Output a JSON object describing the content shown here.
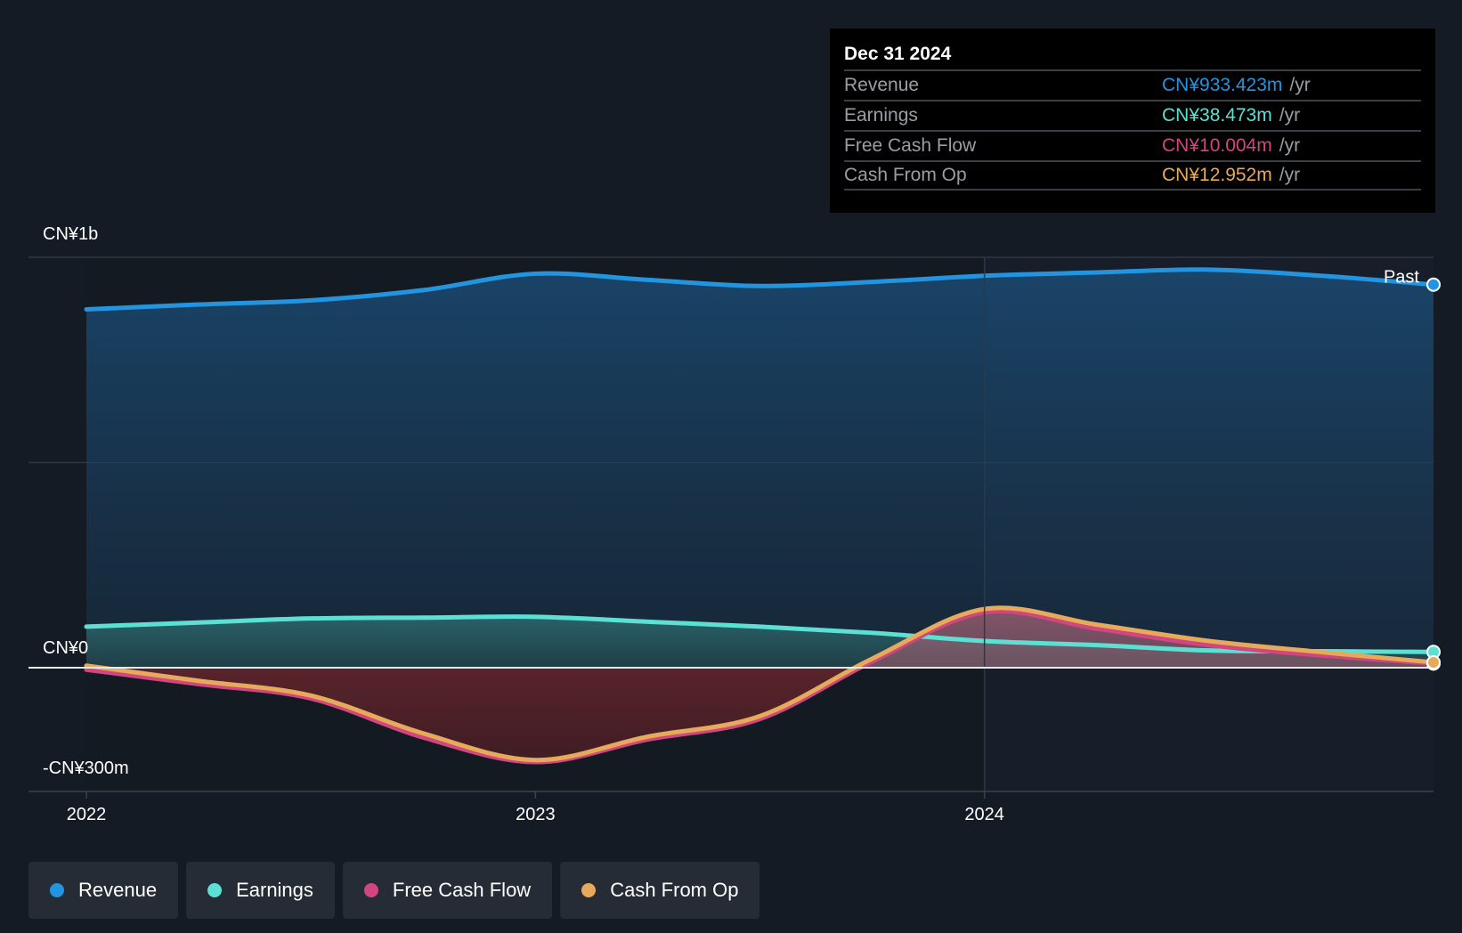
{
  "chart_data": {
    "type": "area",
    "currency_prefix": "CN¥",
    "y_axis_labels": {
      "top": "CN¥1b",
      "zero": "CN¥0",
      "bottom": "-CN¥300m"
    },
    "ylim": [
      -300,
      1000
    ],
    "xlim": [
      2022.0,
      2025.0
    ],
    "x_ticks": [
      {
        "value": 2022,
        "label": "2022"
      },
      {
        "value": 2023,
        "label": "2023"
      },
      {
        "value": 2024,
        "label": "2024"
      }
    ],
    "past_label": "Past",
    "past_start": 2024.0,
    "series": [
      {
        "name": "Revenue",
        "color": "#2394df",
        "x": [
          2022.0,
          2022.25,
          2022.5,
          2022.75,
          2023.0,
          2023.25,
          2023.5,
          2023.75,
          2024.0,
          2024.25,
          2024.5,
          2024.75,
          2025.0
        ],
        "values": [
          873,
          885,
          895,
          920,
          960,
          945,
          930,
          940,
          955,
          963,
          970,
          955,
          933.423
        ]
      },
      {
        "name": "Earnings",
        "color": "#5ce0d4",
        "x": [
          2022.0,
          2022.25,
          2022.5,
          2022.75,
          2023.0,
          2023.25,
          2023.5,
          2023.75,
          2024.0,
          2024.25,
          2024.5,
          2024.75,
          2025.0
        ],
        "values": [
          100,
          110,
          120,
          122,
          124,
          112,
          100,
          85,
          65,
          55,
          42,
          40,
          38.473
        ]
      },
      {
        "name": "Free Cash Flow",
        "color": "#d1467e",
        "x": [
          2022.0,
          2022.25,
          2022.5,
          2022.75,
          2023.0,
          2023.25,
          2023.5,
          2023.75,
          2024.0,
          2024.25,
          2024.5,
          2024.75,
          2025.0
        ],
        "values": [
          -5,
          -40,
          -75,
          -170,
          -230,
          -175,
          -125,
          15,
          135,
          95,
          55,
          30,
          10.004
        ]
      },
      {
        "name": "Cash From Op",
        "color": "#e7a95a",
        "x": [
          2022.0,
          2022.25,
          2022.5,
          2022.75,
          2023.0,
          2023.25,
          2023.5,
          2023.75,
          2024.0,
          2024.25,
          2024.5,
          2024.75,
          2025.0
        ],
        "values": [
          5,
          -32,
          -68,
          -160,
          -225,
          -168,
          -118,
          22,
          143,
          105,
          65,
          38,
          12.952
        ]
      }
    ],
    "tooltip": {
      "date": "Dec 31 2024",
      "rows": [
        {
          "label": "Revenue",
          "value": "CN¥933.423m",
          "unit": "/yr",
          "color": "#2394df"
        },
        {
          "label": "Earnings",
          "value": "CN¥38.473m",
          "unit": "/yr",
          "color": "#5ce0d4"
        },
        {
          "label": "Free Cash Flow",
          "value": "CN¥10.004m",
          "unit": "/yr",
          "color": "#d1467e"
        },
        {
          "label": "Cash From Op",
          "value": "CN¥12.952m",
          "unit": "/yr",
          "color": "#e7a95a"
        }
      ]
    },
    "legend": [
      {
        "label": "Revenue",
        "color": "#2394df"
      },
      {
        "label": "Earnings",
        "color": "#5ce0d4"
      },
      {
        "label": "Free Cash Flow",
        "color": "#d1467e"
      },
      {
        "label": "Cash From Op",
        "color": "#e7a95a"
      }
    ]
  }
}
